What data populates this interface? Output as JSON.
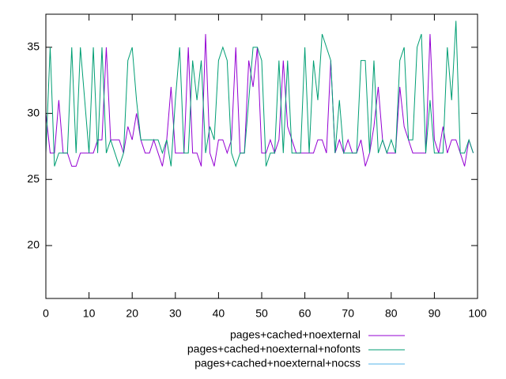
{
  "chart_data": {
    "type": "line",
    "x": [
      0,
      1,
      2,
      3,
      4,
      5,
      6,
      7,
      8,
      9,
      10,
      11,
      12,
      13,
      14,
      15,
      16,
      17,
      18,
      19,
      20,
      21,
      22,
      23,
      24,
      25,
      26,
      27,
      28,
      29,
      30,
      31,
      32,
      33,
      34,
      35,
      36,
      37,
      38,
      39,
      40,
      41,
      42,
      43,
      44,
      45,
      46,
      47,
      48,
      49,
      50,
      51,
      52,
      53,
      54,
      55,
      56,
      57,
      58,
      59,
      60,
      61,
      62,
      63,
      64,
      65,
      66,
      67,
      68,
      69,
      70,
      71,
      72,
      73,
      74,
      75,
      76,
      77,
      78,
      79,
      80,
      81,
      82,
      83,
      84,
      85,
      86,
      87,
      88,
      89,
      90,
      91,
      92,
      93,
      94,
      95,
      96,
      97,
      98,
      99
    ],
    "series": [
      {
        "name": "pages+cached+noexternal",
        "color": "#9400d3",
        "values": [
          30,
          27,
          27,
          31,
          27,
          27,
          26,
          26,
          27,
          27,
          27,
          27,
          28,
          28,
          35,
          28,
          28,
          28,
          27,
          29,
          28,
          30,
          28,
          27,
          27,
          28,
          27,
          26,
          28,
          32,
          27,
          27,
          27,
          35,
          27,
          27,
          26,
          36,
          27,
          26,
          28,
          28,
          27,
          28,
          35,
          27,
          27,
          34,
          32,
          35,
          27,
          27,
          28,
          27,
          28,
          34,
          29,
          28,
          27,
          27,
          27,
          27,
          27,
          28,
          28,
          27,
          34,
          27,
          28,
          27,
          28,
          27,
          27,
          28,
          26,
          27,
          29,
          32,
          28,
          27,
          27,
          27,
          32,
          29,
          28,
          27,
          27,
          27,
          27,
          36,
          28,
          27,
          29,
          27,
          28,
          28,
          27,
          26,
          28,
          27
        ]
      },
      {
        "name": "pages+cached+noexternal+nofonts",
        "color": "#009e73",
        "values": [
          27,
          35,
          26,
          27,
          27,
          27,
          35,
          27,
          35,
          31,
          27,
          35,
          27,
          35,
          27,
          28,
          27,
          26,
          27,
          34,
          35,
          31,
          28,
          28,
          28,
          28,
          28,
          27,
          28,
          26,
          31,
          35,
          27,
          27,
          34,
          31,
          34,
          27,
          29,
          28,
          34,
          35,
          34,
          27,
          26,
          27,
          27,
          31,
          35,
          35,
          34,
          26,
          27,
          27,
          34,
          27,
          34,
          27,
          27,
          27,
          35,
          27,
          34,
          31,
          36,
          35,
          34,
          27,
          31,
          27,
          27,
          27,
          27,
          34,
          34,
          27,
          34,
          27,
          28,
          27,
          28,
          27,
          34,
          35,
          28,
          28,
          35,
          36,
          27,
          31,
          27,
          27,
          27,
          35,
          31,
          37,
          27,
          27,
          28,
          27
        ]
      },
      {
        "name": "pages+cached+noexternal+nocss",
        "color": "#56b4e9",
        "values": [
          16,
          16,
          16,
          16,
          16,
          16,
          16,
          16,
          16,
          16,
          16,
          16,
          16,
          16,
          16,
          16,
          16,
          16,
          16,
          16,
          16,
          16,
          16,
          16,
          16,
          16,
          16,
          16,
          16,
          16,
          16,
          16,
          16,
          16,
          16,
          16,
          16,
          16,
          16,
          16,
          16,
          16,
          16,
          16,
          16,
          16,
          16,
          16,
          16,
          16,
          16,
          16,
          16,
          16,
          16,
          16,
          16,
          16,
          16,
          16,
          16,
          16,
          16,
          16,
          16,
          16,
          16,
          16,
          16,
          16,
          16,
          16,
          16,
          16,
          16,
          16,
          16,
          16,
          16,
          16,
          16,
          16,
          16,
          16,
          16,
          16,
          16,
          16,
          16,
          16,
          16,
          16,
          16,
          16,
          16,
          16,
          16,
          16,
          16,
          16
        ]
      }
    ],
    "xlim": [
      0,
      100
    ],
    "xticks": [
      0,
      10,
      20,
      30,
      40,
      50,
      60,
      70,
      80,
      90,
      100
    ],
    "ylim": [
      16,
      37.5
    ],
    "yticks": [
      20,
      25,
      30,
      35
    ],
    "legend": "bottom-right"
  }
}
